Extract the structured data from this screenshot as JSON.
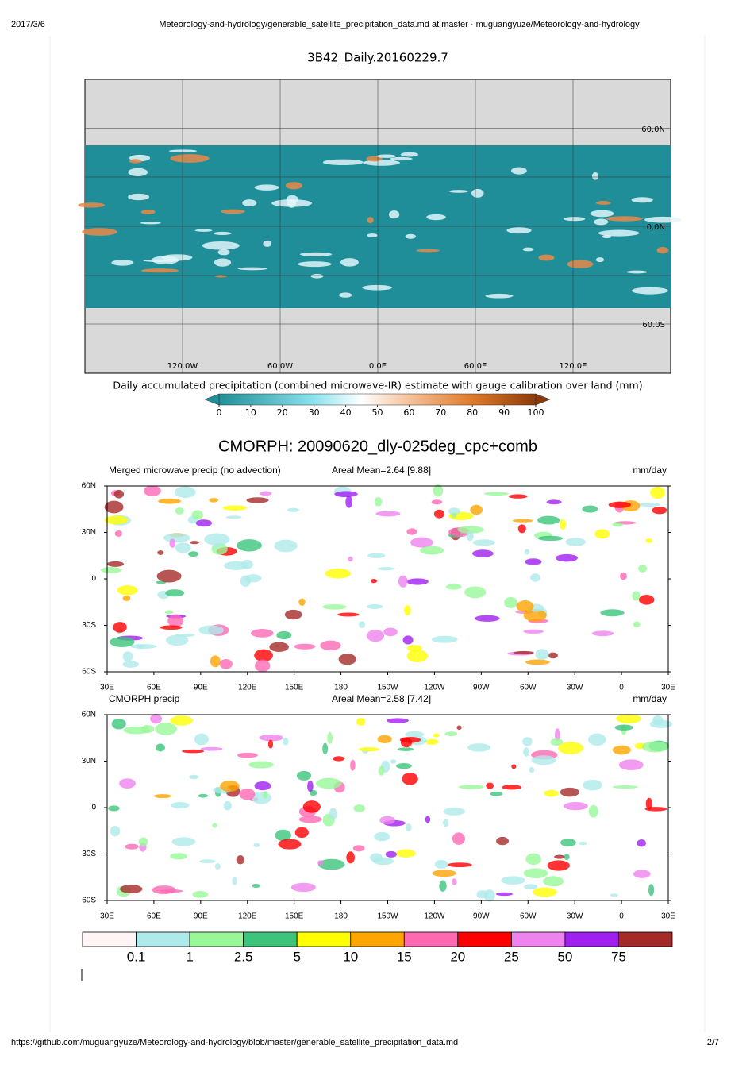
{
  "header": {
    "date": "2017/3/6",
    "title": "Meteorology-and-hydrology/generable_satellite_precipitation_data.md at master · muguangyuze/Meteorology-and-hydrology"
  },
  "figure1": {
    "title": "3B42_Daily.20160229.7",
    "lat_labels": [
      "60.0N",
      "0.0N",
      "60.0S"
    ],
    "lon_labels": [
      "120.0W",
      "60.0W",
      "0.0E",
      "60.0E",
      "120.0E"
    ],
    "colorbar_label": "Daily accumulated precipitation (combined microwave-IR) estimate with gauge calibration over land (mm)",
    "colorbar_ticks": [
      0,
      10,
      20,
      30,
      40,
      50,
      60,
      70,
      80,
      90,
      100
    ]
  },
  "figure2": {
    "title": "CMORPH: 20090620_dly-025deg_cpc+comb",
    "panels": [
      {
        "left": "Merged microwave precip (no advection)",
        "center": "Areal Mean=2.64 [9.88]",
        "right": "mm/day"
      },
      {
        "left": "CMORPH precip",
        "center": "Areal Mean=2.58 [7.42]",
        "right": "mm/day"
      }
    ],
    "lat_labels": [
      "60N",
      "30N",
      "0",
      "30S",
      "60S"
    ],
    "lon_labels": [
      "30E",
      "60E",
      "90E",
      "120E",
      "150E",
      "180",
      "150W",
      "120W",
      "90W",
      "60W",
      "30W",
      "0",
      "30E"
    ],
    "levels": [
      0.1,
      1,
      2.5,
      5,
      10,
      15,
      20,
      25,
      50,
      75
    ],
    "colors": [
      "#fff5f5",
      "#aeeaea",
      "#98f898",
      "#3cc47a",
      "#ffff00",
      "#ffa500",
      "#ff69b4",
      "#ff0000",
      "#ee82ee",
      "#a020f0",
      "#a52a2a"
    ]
  },
  "footer": {
    "url": "https://github.com/muguangyuze/Meteorology-and-hydrology/blob/master/generable_satellite_precipitation_data.md",
    "page": "2/7"
  }
}
